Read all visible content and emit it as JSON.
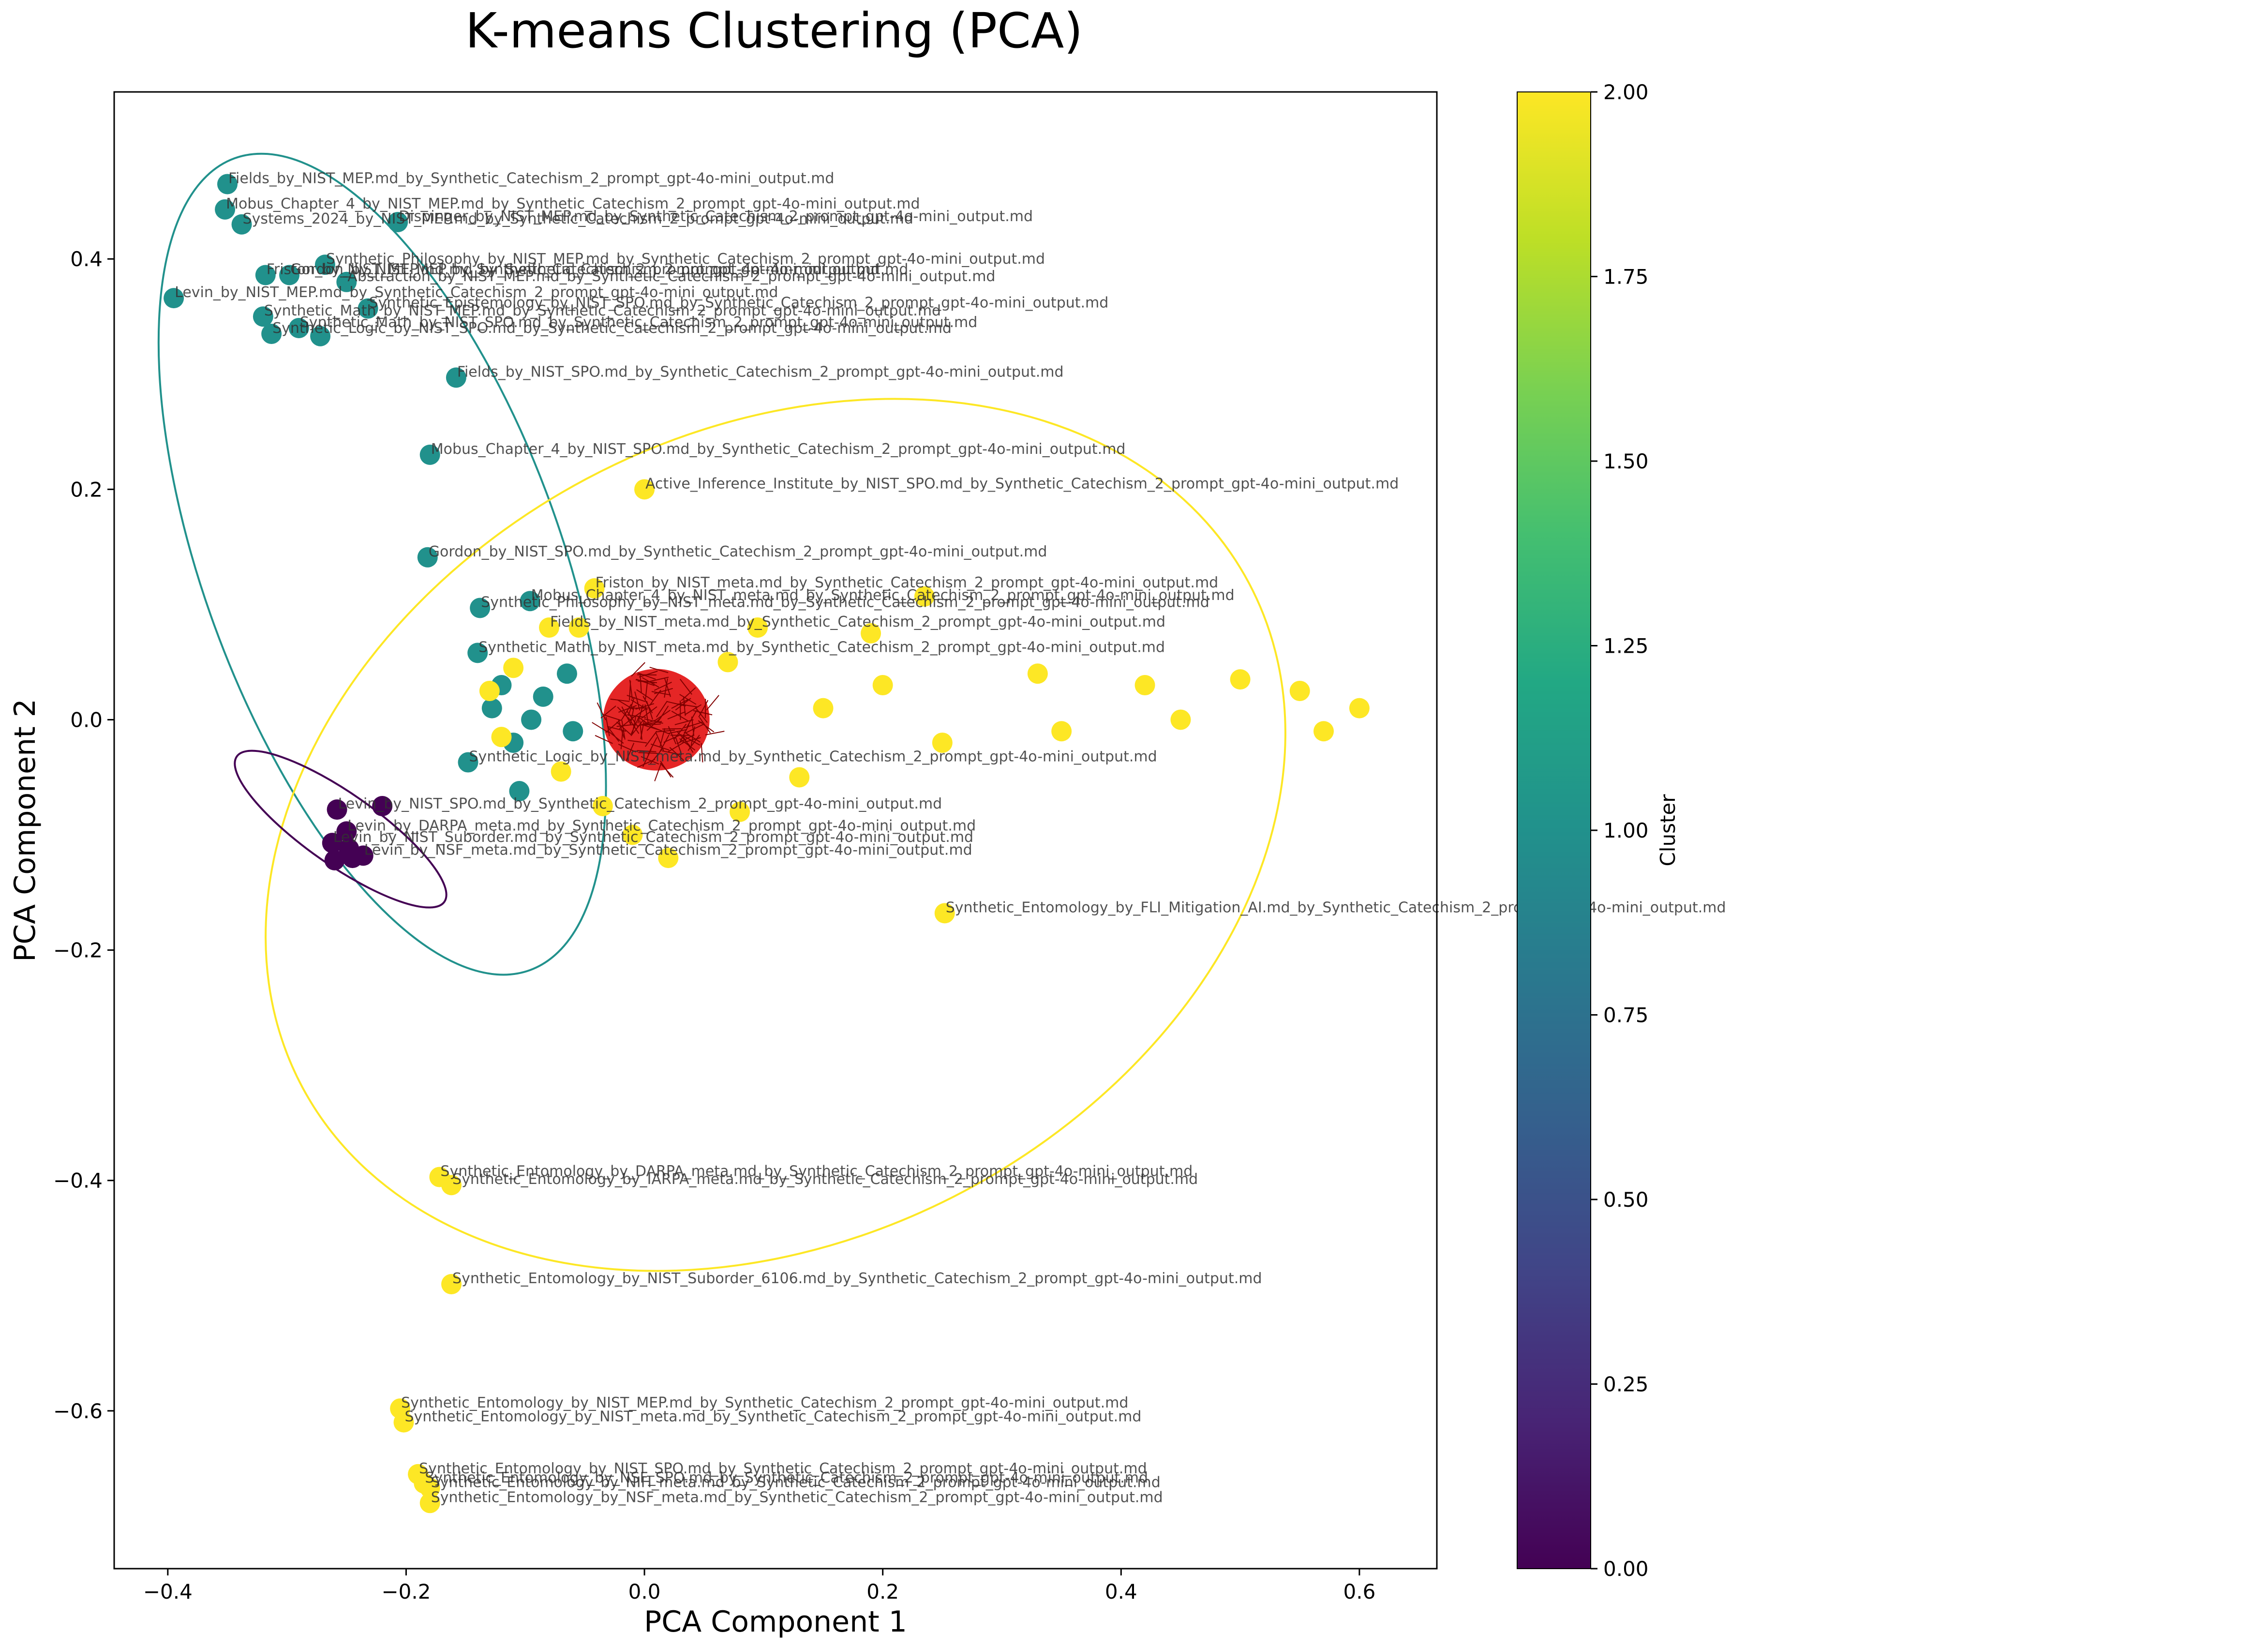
{
  "chart_data": {
    "type": "scatter",
    "title": "K-means Clustering (PCA)",
    "xlabel": "PCA Component 1",
    "ylabel": "PCA Component 2",
    "xlim": [
      -0.445,
      0.665
    ],
    "ylim": [
      -0.737,
      0.545
    ],
    "xticks": [
      -0.4,
      -0.2,
      0.0,
      0.2,
      0.4,
      0.6
    ],
    "xtick_labels": [
      "−0.4",
      "−0.2",
      "0.0",
      "0.2",
      "0.4",
      "0.6"
    ],
    "yticks": [
      -0.6,
      -0.4,
      -0.2,
      0.0,
      0.2,
      0.4
    ],
    "ytick_labels": [
      "−0.6",
      "−0.4",
      "−0.2",
      "0.0",
      "0.2",
      "0.4"
    ],
    "grid": false,
    "colormap": "viridis",
    "colorbar": {
      "label": "Cluster",
      "range": [
        0.0,
        2.0
      ],
      "ticks": [
        0.0,
        0.25,
        0.5,
        0.75,
        1.0,
        1.25,
        1.5,
        1.75,
        2.0
      ],
      "tick_labels": [
        "0.00",
        "0.25",
        "0.50",
        "0.75",
        "1.00",
        "1.25",
        "1.50",
        "1.75",
        "2.00"
      ]
    },
    "cluster_colors": {
      "0": "#440154",
      "1": "#21918c",
      "2": "#fde725"
    },
    "centroid_color": "#ff0000",
    "centroids": {
      "x": 0.01,
      "y": 0.0,
      "note_visible": false
    },
    "ellipses": [
      {
        "cluster": 1,
        "color": "#21918c",
        "center": [
          -0.22,
          0.135
        ],
        "width": 0.3,
        "height": 0.75,
        "angle_deg": 20
      },
      {
        "cluster": 2,
        "color": "#fde725",
        "center": [
          0.11,
          -0.1
        ],
        "width": 0.9,
        "height": 0.7,
        "angle_deg": 28
      },
      {
        "cluster": 0,
        "color": "#440154",
        "center": [
          -0.255,
          -0.095
        ],
        "width": 0.06,
        "height": 0.22,
        "angle_deg": 55
      }
    ],
    "points": [
      {
        "x": -0.35,
        "y": 0.465,
        "cluster": 1,
        "label": "Fields_by_NIST_MEP.md_by_Synthetic_Catechism_2_prompt_gpt-4o-mini_output.md"
      },
      {
        "x": -0.352,
        "y": 0.443,
        "cluster": 1,
        "label": "Mobus_Chapter_4_by_NIST_MEP.md_by_Synthetic_Catechism_2_prompt_gpt-4o-mini_output.md"
      },
      {
        "x": -0.338,
        "y": 0.43,
        "cluster": 1,
        "label": "Systems_2024_by_NIST_MEP.md_by_Synthetic_Catechism_2_prompt_gpt-4o-mini_output.md"
      },
      {
        "x": -0.207,
        "y": 0.432,
        "cluster": 1,
        "label": "Dispinger_by_NIST_MEP.md_by_Synthetic_Catechism_2_prompt_gpt-4o-mini_output.md"
      },
      {
        "x": -0.268,
        "y": 0.395,
        "cluster": 1,
        "label": "Synthetic_Philosophy_by_NIST_MEP.md_by_Synthetic_Catechism_2_prompt_gpt-4o-mini_output.md"
      },
      {
        "x": -0.318,
        "y": 0.386,
        "cluster": 1,
        "label": "Friston_by_NIST_MEP.md_by_Synthetic_Catechism_2_prompt_gpt-4o-mini_output.md"
      },
      {
        "x": -0.298,
        "y": 0.386,
        "cluster": 1,
        "label": "Gordon_by_NIST_MEP.md_by_Synthetic_Catechism_2_prompt_gpt-4o-mini_output.md"
      },
      {
        "x": -0.25,
        "y": 0.38,
        "cluster": 1,
        "label": "Abstraction_by_NIST_MEP.md_by_Synthetic_Catechism_2_prompt_gpt-4o-mini_output.md"
      },
      {
        "x": -0.395,
        "y": 0.366,
        "cluster": 1,
        "label": "Levin_by_NIST_MEP.md_by_Synthetic_Catechism_2_prompt_gpt-4o-mini_output.md"
      },
      {
        "x": -0.232,
        "y": 0.357,
        "cluster": 1,
        "label": "Synthetic_Epistemology_by_NIST_SPO.md_by_Synthetic_Catechism_2_prompt_gpt-4o-mini_output.md"
      },
      {
        "x": -0.32,
        "y": 0.35,
        "cluster": 1,
        "label": "Synthetic_Math_by_NIST_MEP.md_by_Synthetic_Catechism_2_prompt_gpt-4o-mini_output.md"
      },
      {
        "x": -0.29,
        "y": 0.34,
        "cluster": 1,
        "label": "Synthetic_Math_by_NIST_SPO.md_by_Synthetic_Catechism_2_prompt_gpt-4o-mini_output.md"
      },
      {
        "x": -0.313,
        "y": 0.335,
        "cluster": 1,
        "label": "Synthetic_Logic_by_NIST_SPO.md_by_Synthetic_Catechism_2_prompt_gpt-4o-mini_output.md"
      },
      {
        "x": -0.272,
        "y": 0.333,
        "cluster": 1,
        "label": ""
      },
      {
        "x": -0.158,
        "y": 0.297,
        "cluster": 1,
        "label": "Fields_by_NIST_SPO.md_by_Synthetic_Catechism_2_prompt_gpt-4o-mini_output.md"
      },
      {
        "x": -0.18,
        "y": 0.23,
        "cluster": 1,
        "label": "Mobus_Chapter_4_by_NIST_SPO.md_by_Synthetic_Catechism_2_prompt_gpt-4o-mini_output.md"
      },
      {
        "x": -0.182,
        "y": 0.141,
        "cluster": 1,
        "label": "Gordon_by_NIST_SPO.md_by_Synthetic_Catechism_2_prompt_gpt-4o-mini_output.md"
      },
      {
        "x": -0.138,
        "y": 0.097,
        "cluster": 1,
        "label": "Synthetic_Philosophy_by_NIST_meta.md_by_Synthetic_Catechism_2_prompt_gpt-4o-mini_output.md"
      },
      {
        "x": -0.096,
        "y": 0.103,
        "cluster": 1,
        "label": "Mobus_Chapter_4_by_NIST_meta.md_by_Synthetic_Catechism_2_prompt_gpt-4o-mini_output.md"
      },
      {
        "x": -0.14,
        "y": 0.058,
        "cluster": 1,
        "label": "Synthetic_Math_by_NIST_meta.md_by_Synthetic_Catechism_2_prompt_gpt-4o-mini_output.md"
      },
      {
        "x": -0.12,
        "y": 0.03,
        "cluster": 1,
        "label": ""
      },
      {
        "x": -0.128,
        "y": 0.01,
        "cluster": 1,
        "label": ""
      },
      {
        "x": -0.095,
        "y": 0.0,
        "cluster": 1,
        "label": ""
      },
      {
        "x": -0.148,
        "y": -0.037,
        "cluster": 1,
        "label": "Synthetic_Logic_by_NIST_meta.md_by_Synthetic_Catechism_2_prompt_gpt-4o-mini_output.md"
      },
      {
        "x": -0.11,
        "y": -0.02,
        "cluster": 1,
        "label": ""
      },
      {
        "x": -0.105,
        "y": -0.062,
        "cluster": 1,
        "label": ""
      },
      {
        "x": -0.085,
        "y": 0.02,
        "cluster": 1,
        "label": ""
      },
      {
        "x": -0.065,
        "y": 0.04,
        "cluster": 1,
        "label": ""
      },
      {
        "x": -0.06,
        "y": -0.01,
        "cluster": 1,
        "label": ""
      },
      {
        "x": -0.258,
        "y": -0.078,
        "cluster": 0,
        "label": "Levin_by_NIST_SPO.md_by_Synthetic_Catechism_2_prompt_gpt-4o-mini_output.md"
      },
      {
        "x": -0.22,
        "y": -0.075,
        "cluster": 0,
        "label": ""
      },
      {
        "x": -0.25,
        "y": -0.097,
        "cluster": 0,
        "label": "Levin_by_DARPA_meta.md_by_Synthetic_Catechism_2_prompt_gpt-4o-mini_output.md"
      },
      {
        "x": -0.262,
        "y": -0.107,
        "cluster": 0,
        "label": "Levin_by_NIST_Suborder.md_by_Synthetic_Catechism_2_prompt_gpt-4o-mini_output.md"
      },
      {
        "x": -0.248,
        "y": -0.112,
        "cluster": 0,
        "label": ""
      },
      {
        "x": -0.236,
        "y": -0.118,
        "cluster": 0,
        "label": "Levin_by_NSF_meta.md_by_Synthetic_Catechism_2_prompt_gpt-4o-mini_output.md"
      },
      {
        "x": -0.26,
        "y": -0.122,
        "cluster": 0,
        "label": ""
      },
      {
        "x": -0.245,
        "y": -0.12,
        "cluster": 0,
        "label": ""
      },
      {
        "x": 0.0,
        "y": 0.2,
        "cluster": 2,
        "label": "Active_Inference_Institute_by_NIST_SPO.md_by_Synthetic_Catechism_2_prompt_gpt-4o-mini_output.md"
      },
      {
        "x": -0.042,
        "y": 0.114,
        "cluster": 2,
        "label": "Friston_by_NIST_meta.md_by_Synthetic_Catechism_2_prompt_gpt-4o-mini_output.md"
      },
      {
        "x": 0.235,
        "y": 0.107,
        "cluster": 2,
        "label": ""
      },
      {
        "x": -0.08,
        "y": 0.08,
        "cluster": 2,
        "label": "Fields_by_NIST_meta.md_by_Synthetic_Catechism_2_prompt_gpt-4o-mini_output.md"
      },
      {
        "x": -0.055,
        "y": 0.08,
        "cluster": 2,
        "label": ""
      },
      {
        "x": 0.095,
        "y": 0.08,
        "cluster": 2,
        "label": ""
      },
      {
        "x": 0.19,
        "y": 0.075,
        "cluster": 2,
        "label": ""
      },
      {
        "x": -0.11,
        "y": 0.045,
        "cluster": 2,
        "label": ""
      },
      {
        "x": -0.13,
        "y": 0.025,
        "cluster": 2,
        "label": ""
      },
      {
        "x": 0.07,
        "y": 0.05,
        "cluster": 2,
        "label": ""
      },
      {
        "x": 0.2,
        "y": 0.03,
        "cluster": 2,
        "label": ""
      },
      {
        "x": 0.33,
        "y": 0.04,
        "cluster": 2,
        "label": ""
      },
      {
        "x": 0.42,
        "y": 0.03,
        "cluster": 2,
        "label": ""
      },
      {
        "x": 0.5,
        "y": 0.035,
        "cluster": 2,
        "label": ""
      },
      {
        "x": 0.55,
        "y": 0.025,
        "cluster": 2,
        "label": ""
      },
      {
        "x": 0.6,
        "y": 0.01,
        "cluster": 2,
        "label": ""
      },
      {
        "x": 0.57,
        "y": -0.01,
        "cluster": 2,
        "label": ""
      },
      {
        "x": 0.45,
        "y": 0.0,
        "cluster": 2,
        "label": ""
      },
      {
        "x": 0.35,
        "y": -0.01,
        "cluster": 2,
        "label": ""
      },
      {
        "x": 0.25,
        "y": -0.02,
        "cluster": 2,
        "label": ""
      },
      {
        "x": 0.15,
        "y": 0.01,
        "cluster": 2,
        "label": ""
      },
      {
        "x": -0.12,
        "y": -0.015,
        "cluster": 2,
        "label": ""
      },
      {
        "x": -0.07,
        "y": -0.045,
        "cluster": 2,
        "label": ""
      },
      {
        "x": -0.035,
        "y": -0.075,
        "cluster": 2,
        "label": ""
      },
      {
        "x": 0.08,
        "y": -0.08,
        "cluster": 2,
        "label": ""
      },
      {
        "x": 0.13,
        "y": -0.05,
        "cluster": 2,
        "label": ""
      },
      {
        "x": -0.01,
        "y": -0.1,
        "cluster": 2,
        "label": ""
      },
      {
        "x": 0.02,
        "y": -0.12,
        "cluster": 2,
        "label": ""
      },
      {
        "x": 0.252,
        "y": -0.168,
        "cluster": 2,
        "label": "Synthetic_Entomology_by_FLI_Mitigation_AI.md_by_Synthetic_Catechism_2_prompt_gpt-4o-mini_output.md"
      },
      {
        "x": -0.172,
        "y": -0.397,
        "cluster": 2,
        "label": "Synthetic_Entomology_by_DARPA_meta.md_by_Synthetic_Catechism_2_prompt_gpt-4o-mini_output.md"
      },
      {
        "x": -0.162,
        "y": -0.404,
        "cluster": 2,
        "label": "Synthetic_Entomology_by_IARPA_meta.md_by_Synthetic_Catechism_2_prompt_gpt-4o-mini_output.md"
      },
      {
        "x": -0.162,
        "y": -0.49,
        "cluster": 2,
        "label": "Synthetic_Entomology_by_NIST_Suborder_6106.md_by_Synthetic_Catechism_2_prompt_gpt-4o-mini_output.md"
      },
      {
        "x": -0.205,
        "y": -0.598,
        "cluster": 2,
        "label": "Synthetic_Entomology_by_NIST_MEP.md_by_Synthetic_Catechism_2_prompt_gpt-4o-mini_output.md"
      },
      {
        "x": -0.202,
        "y": -0.61,
        "cluster": 2,
        "label": "Synthetic_Entomology_by_NIST_meta.md_by_Synthetic_Catechism_2_prompt_gpt-4o-mini_output.md"
      },
      {
        "x": -0.19,
        "y": -0.655,
        "cluster": 2,
        "label": "Synthetic_Entomology_by_NIST_SPO.md_by_Synthetic_Catechism_2_prompt_gpt-4o-mini_output.md"
      },
      {
        "x": -0.185,
        "y": -0.663,
        "cluster": 2,
        "label": "Synthetic_Entomology_by_NSF_SPO.md_by_Synthetic_Catechism_2_prompt_gpt-4o-mini_output.md"
      },
      {
        "x": -0.18,
        "y": -0.667,
        "cluster": 2,
        "label": "Synthetic_Entomology_by_NIH_meta.md_by_Synthetic_Catechism_2_prompt_gpt-4o-mini_output.md"
      },
      {
        "x": -0.18,
        "y": -0.68,
        "cluster": 2,
        "label": "Synthetic_Entomology_by_NSF_meta.md_by_Synthetic_Catechism_2_prompt_gpt-4o-mini_output.md"
      }
    ]
  }
}
